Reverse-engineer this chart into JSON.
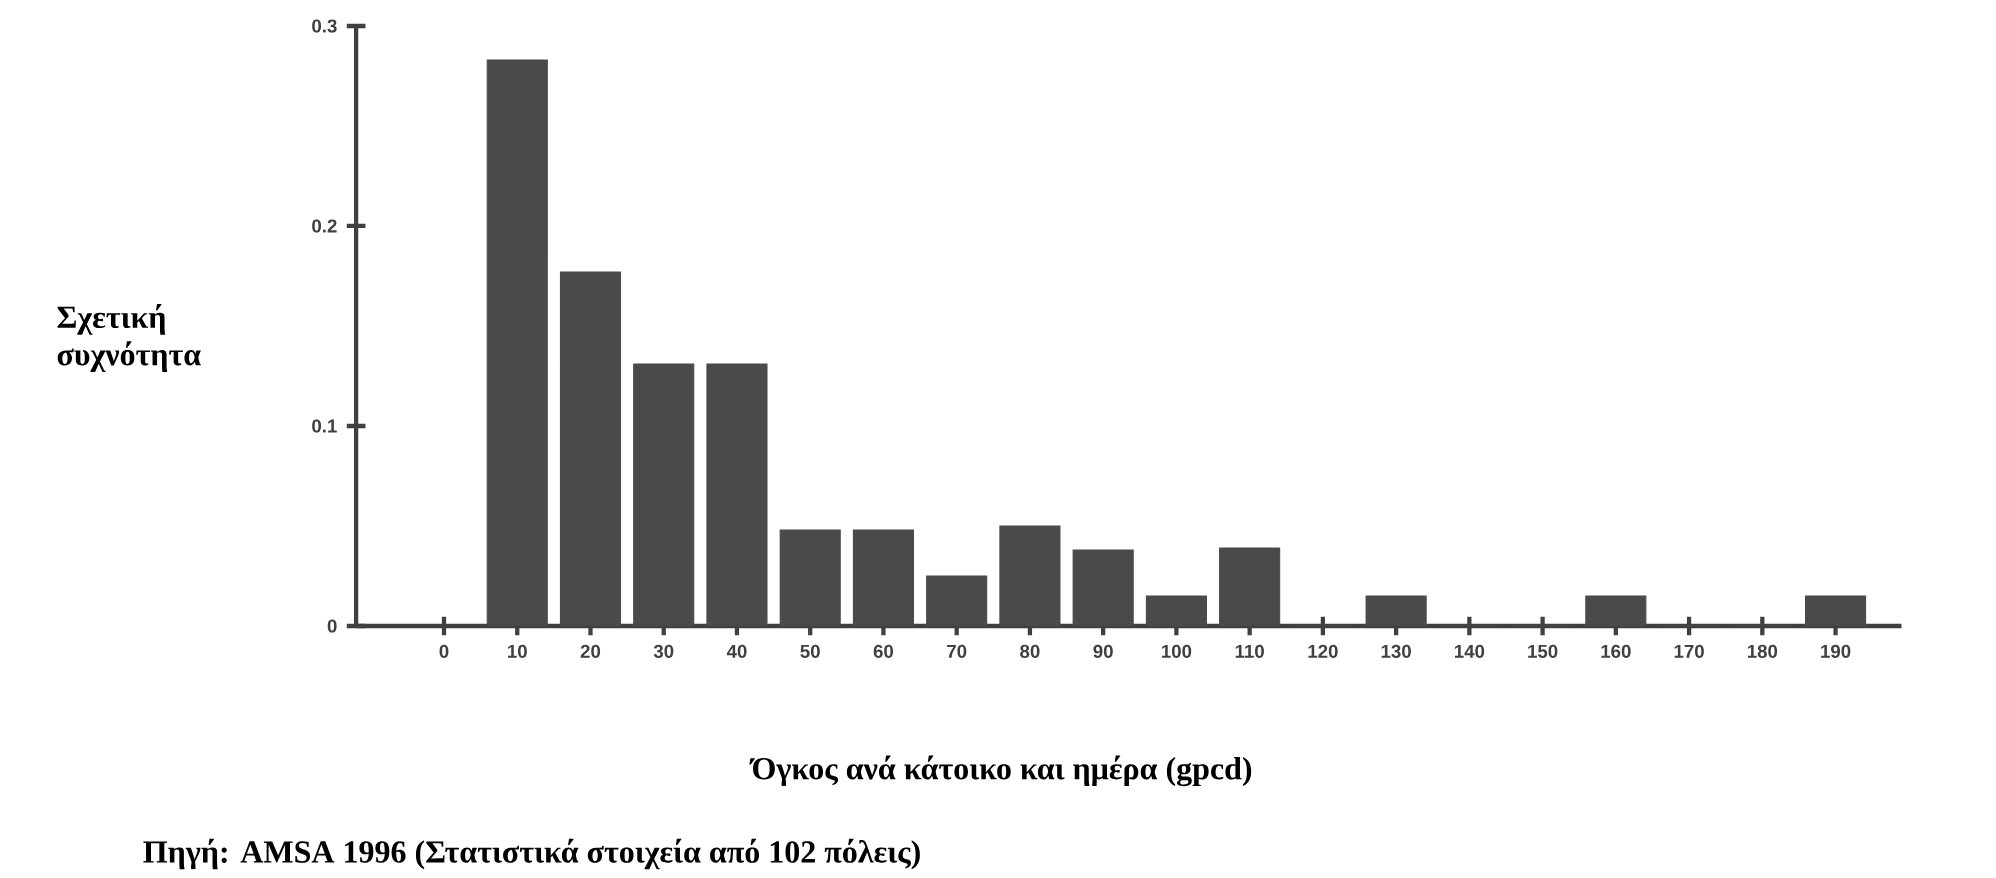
{
  "chart_data": {
    "type": "histogram",
    "ylabel": "Σχετική συχνότητα",
    "xlabel": "Όγκος ανά κάτοικο και ημέρα (gpcd)",
    "annotations": [
      "Πηγή: AMSA 1996 (Στατιστικά στοιχεία από 102 πόλεις)"
    ],
    "bins": [
      5,
      15,
      25,
      35,
      45,
      55,
      65,
      75,
      85,
      95,
      105,
      115,
      125,
      135,
      145,
      155,
      165,
      175,
      185,
      195
    ],
    "values": [
      0.283,
      0.177,
      0.131,
      0.131,
      0.048,
      0.048,
      0.025,
      0.05,
      0.038,
      0.015,
      0.039,
      0,
      0.015,
      0,
      0,
      0.015,
      0,
      0,
      0.015
    ],
    "color": "#4a4a4a",
    "xlim": [
      -12,
      199
    ],
    "ylim": [
      0,
      0.3
    ],
    "xticks": [
      0,
      10,
      20,
      30,
      40,
      50,
      60,
      70,
      80,
      90,
      100,
      110,
      120,
      130,
      140,
      150,
      160,
      170,
      180,
      190
    ],
    "yticks": [
      0,
      0.1,
      0.2,
      0.3
    ],
    "grid": false
  }
}
